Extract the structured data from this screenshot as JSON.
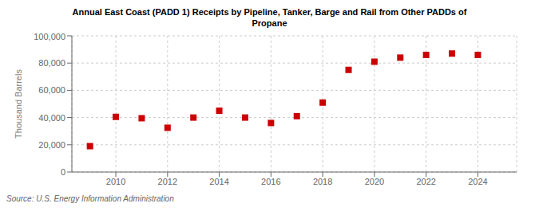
{
  "chart_data": {
    "type": "scatter",
    "title": "Annual East Coast (PADD 1) Receipts by Pipeline, Tanker, Barge and Rail from Other PADDs of\nPropane",
    "y_label": "Thousand Barrels",
    "annotations": [
      "Source: U.S. Energy Information Administration"
    ],
    "x": [
      2009,
      2010,
      2011,
      2012,
      2013,
      2014,
      2015,
      2016,
      2017,
      2018,
      2019,
      2020,
      2021,
      2022,
      2023,
      2024
    ],
    "values": [
      19000,
      40500,
      39500,
      32500,
      40000,
      45000,
      40000,
      36000,
      41000,
      51000,
      75000,
      81000,
      84000,
      86000,
      87000,
      86000
    ],
    "color": "#cc0000",
    "marker": "square",
    "xlim": [
      2008.3,
      2025.5
    ],
    "xticks": [
      2010,
      2012,
      2014,
      2016,
      2018,
      2020,
      2022,
      2024
    ],
    "ylim": [
      0,
      100000
    ],
    "yticks": [
      0,
      {
        "value": 20000,
        "label": "20,000"
      },
      {
        "value": 40000,
        "label": "40,000"
      },
      {
        "value": 60000,
        "label": "60,000"
      },
      {
        "value": 80000,
        "label": "80,000"
      },
      {
        "value": 100000,
        "label": "100,000"
      }
    ],
    "grid": true
  }
}
